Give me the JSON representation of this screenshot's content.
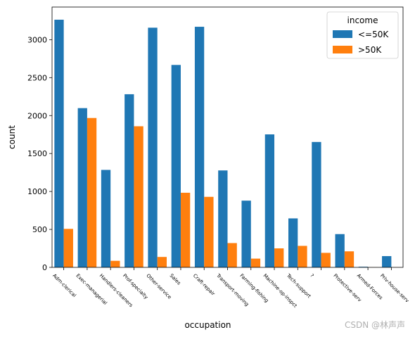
{
  "chart_data": {
    "type": "bar",
    "title": "",
    "xlabel": "occupation",
    "ylabel": "count",
    "ylim": [
      0,
      3430
    ],
    "yticks": [
      0,
      500,
      1000,
      1500,
      2000,
      2500,
      3000
    ],
    "categories": [
      "Adm-clerical",
      "Exec-managerial",
      "Handlers-cleaners",
      "Prof-specialty",
      "Other-service",
      "Sales",
      "Craft-repair",
      "Transport-moving",
      "Farming-fishing",
      "Machine-op-inspct",
      "Tech-support",
      "?",
      "Protective-serv",
      "Armed-Forces",
      "Priv-house-serv"
    ],
    "series": [
      {
        "name": "<=50K",
        "color": "#1f77b4",
        "values": [
          3263,
          2098,
          1284,
          2281,
          3158,
          2667,
          3170,
          1277,
          879,
          1752,
          645,
          1652,
          438,
          8,
          148
        ]
      },
      {
        "name": ">50K",
        "color": "#ff7f0e",
        "values": [
          507,
          1968,
          86,
          1859,
          137,
          983,
          929,
          320,
          115,
          250,
          283,
          191,
          211,
          1,
          1
        ]
      }
    ],
    "legend": {
      "title": "income",
      "position": "top-right"
    },
    "grid": false
  },
  "watermark": "CSDN @林声声"
}
